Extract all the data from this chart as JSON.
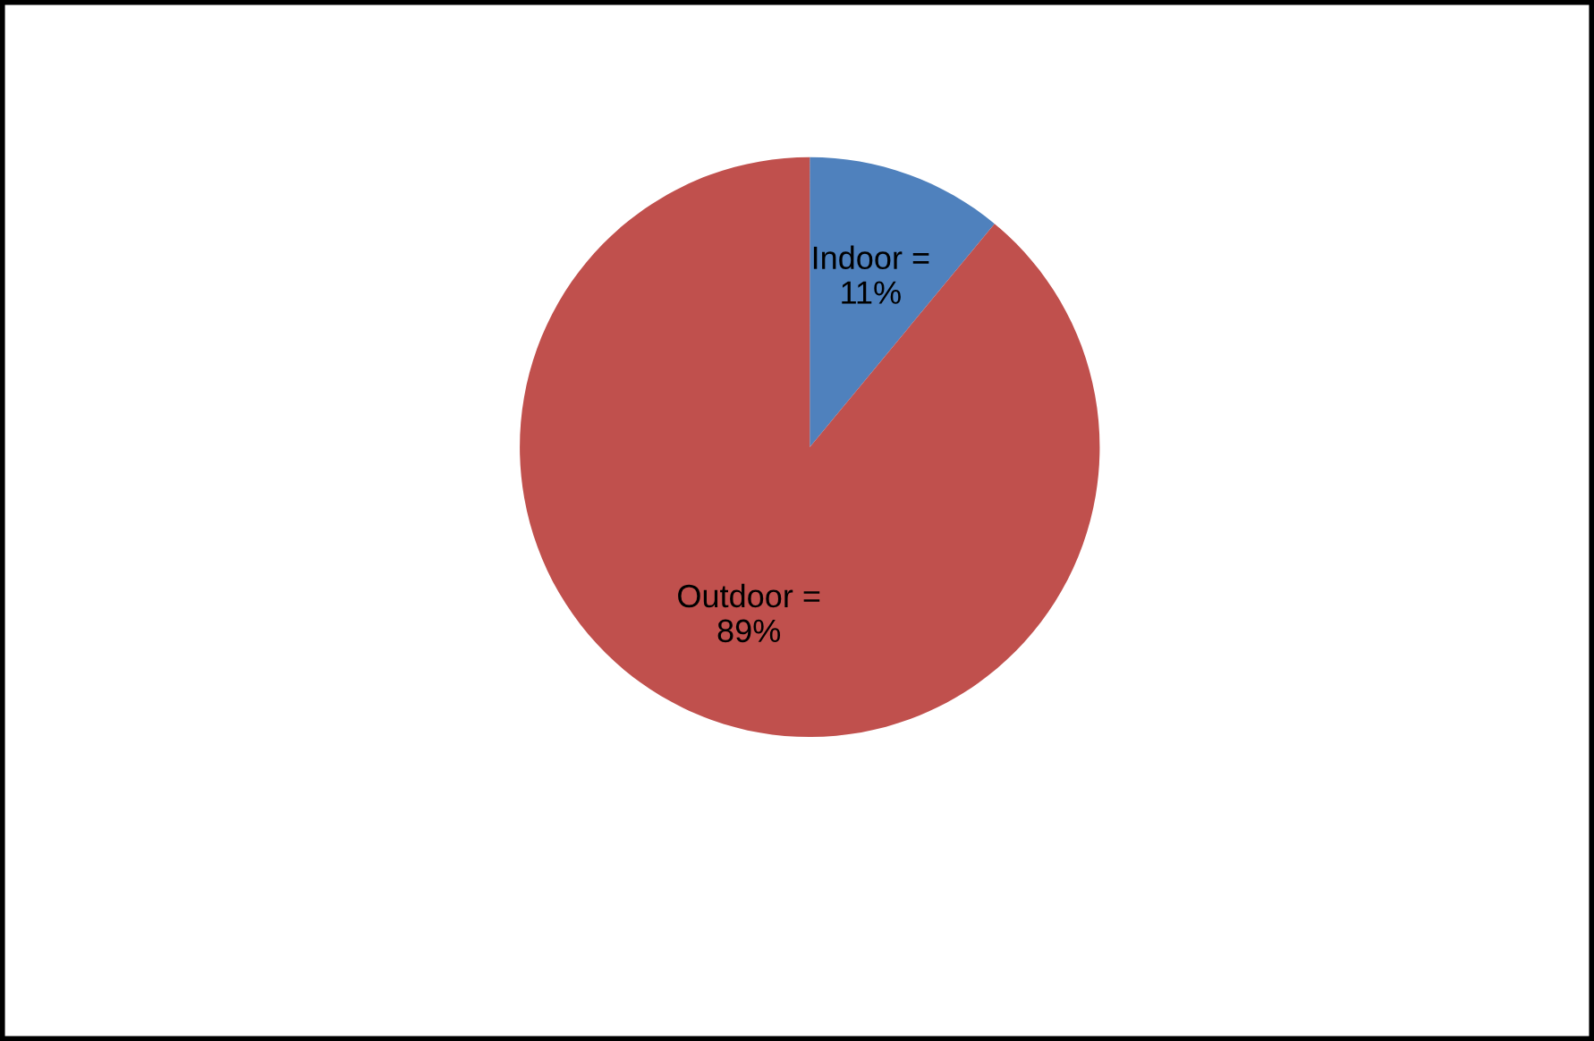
{
  "chart_data": {
    "type": "pie",
    "categories": [
      "Indoor",
      "Outdoor"
    ],
    "values": [
      11,
      89
    ],
    "colors": [
      "#4f81bd",
      "#c0504d"
    ],
    "value_labels": [
      "=\n11%",
      "=\n89%"
    ],
    "legend": false
  }
}
